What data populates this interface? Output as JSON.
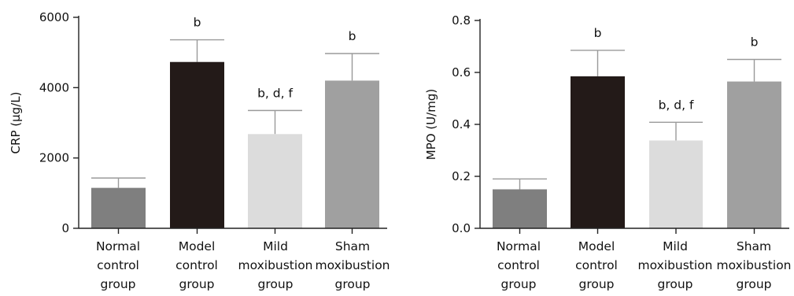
{
  "chart_data": [
    {
      "type": "bar",
      "ylabel": "CRP (μg/L)",
      "ylim": [
        0,
        6000
      ],
      "yticks": [
        0,
        2000,
        4000,
        6000
      ],
      "categories": [
        [
          "Normal",
          "control",
          "group"
        ],
        [
          "Model",
          "control",
          "group"
        ],
        [
          "Mild",
          "moxibustion",
          "group"
        ],
        [
          "Sham",
          "moxibustion",
          "group"
        ]
      ],
      "values": [
        1150,
        4730,
        2680,
        4200
      ],
      "errors": [
        280,
        630,
        670,
        770
      ],
      "colors": [
        "#7f7f7f",
        "#231a18",
        "#dcdcdc",
        "#a0a0a0"
      ],
      "annotations": [
        "",
        "b",
        "b, d, f",
        "b"
      ],
      "grid": false
    },
    {
      "type": "bar",
      "ylabel": "MPO (U/mg)",
      "ylim": [
        0,
        0.8
      ],
      "yticks": [
        "0.0",
        "0.2",
        "0.4",
        "0.6",
        "0.8"
      ],
      "categories": [
        [
          "Normal",
          "control",
          "group"
        ],
        [
          "Model",
          "control",
          "group"
        ],
        [
          "Mild",
          "moxibustion",
          "group"
        ],
        [
          "Sham",
          "moxibustion",
          "group"
        ]
      ],
      "values": [
        0.15,
        0.585,
        0.338,
        0.565
      ],
      "errors": [
        0.04,
        0.1,
        0.07,
        0.085
      ],
      "colors": [
        "#7f7f7f",
        "#231a18",
        "#dcdcdc",
        "#a0a0a0"
      ],
      "annotations": [
        "",
        "b",
        "b, d, f",
        "b"
      ],
      "grid": false
    }
  ]
}
